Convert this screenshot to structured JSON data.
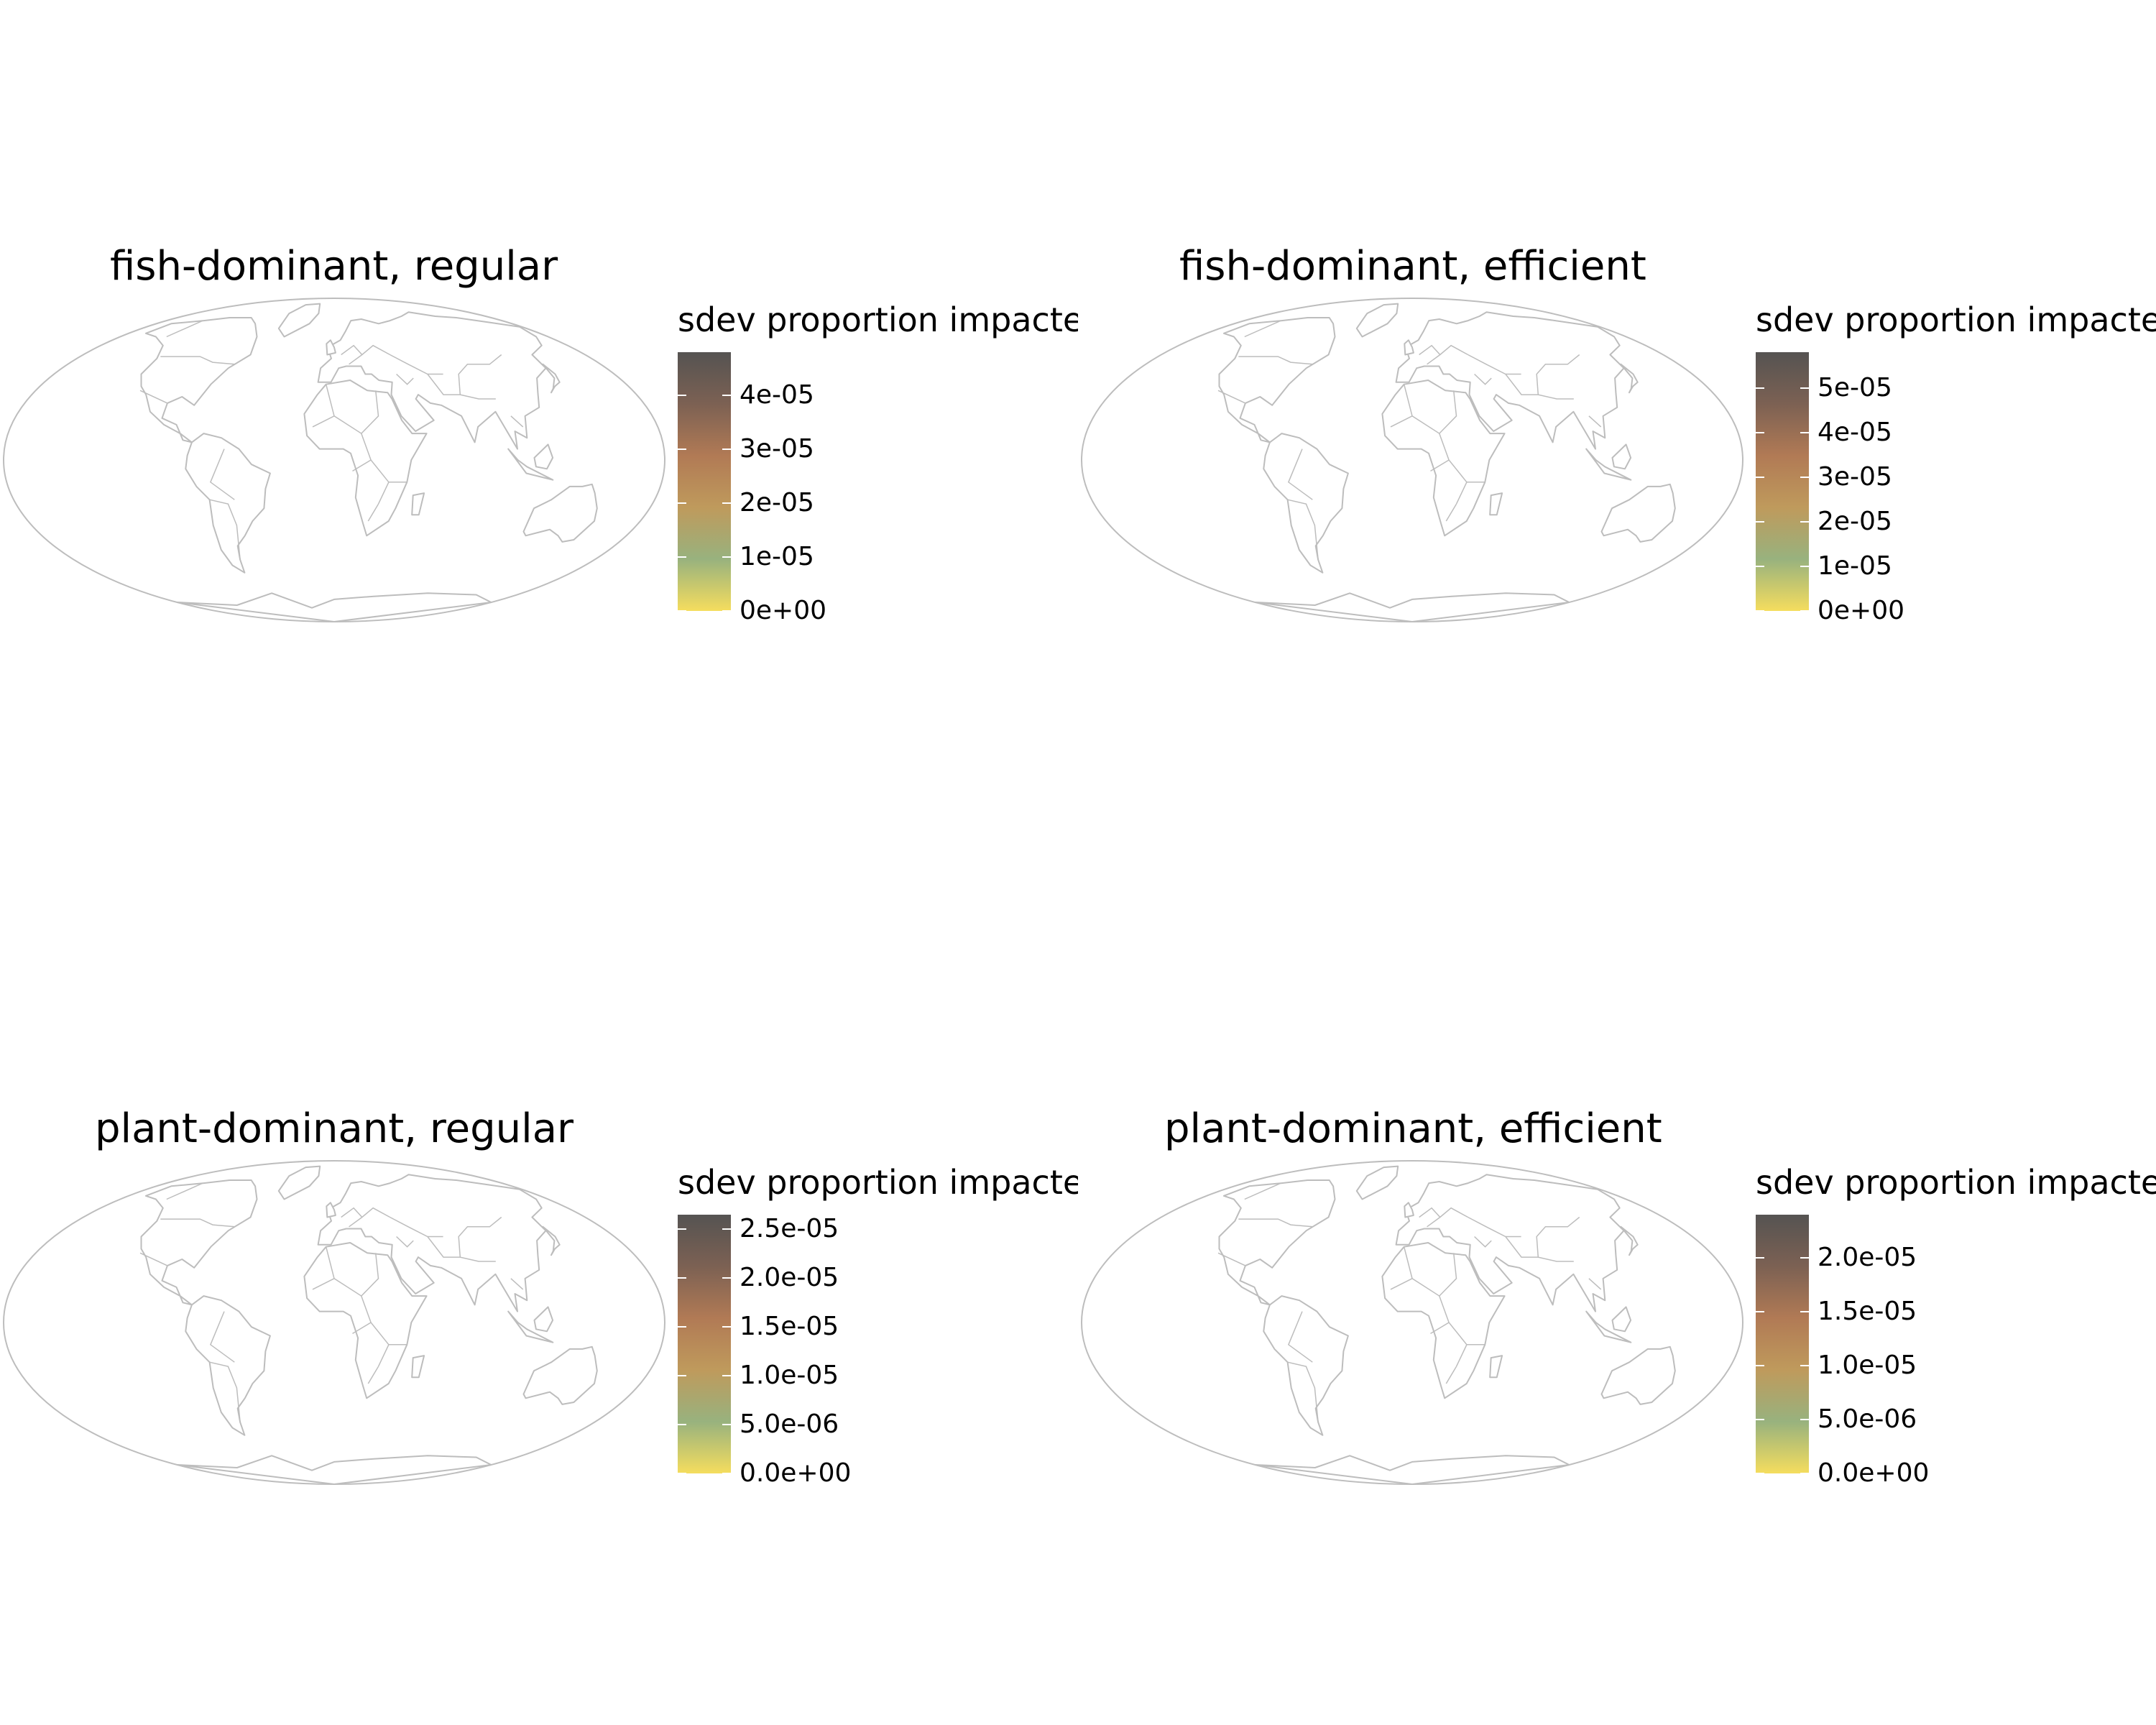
{
  "palette": [
    "#f5dd5e",
    "#98b27e",
    "#bf9a5c",
    "#b17a55",
    "#7c6153",
    "#555352"
  ],
  "map_style": {
    "ocean": "#ffffff",
    "land": "#ffffff",
    "border": "#bdbdbd",
    "projection": "mollweide"
  },
  "panels": [
    {
      "title": "fish-dominant, regular",
      "legend": {
        "title": "sdev proportion impacted",
        "min": 0,
        "max": 4.8e-05,
        "ticks": [
          {
            "value": 0,
            "label": "0e+00"
          },
          {
            "value": 1e-05,
            "label": "1e-05"
          },
          {
            "value": 2e-05,
            "label": "2e-05"
          },
          {
            "value": 3e-05,
            "label": "3e-05"
          },
          {
            "value": 4e-05,
            "label": "4e-05"
          }
        ]
      }
    },
    {
      "title": "fish-dominant, efficient",
      "legend": {
        "title": "sdev proportion impacted",
        "min": 0,
        "max": 5.8e-05,
        "ticks": [
          {
            "value": 0,
            "label": "0e+00"
          },
          {
            "value": 1e-05,
            "label": "1e-05"
          },
          {
            "value": 2e-05,
            "label": "2e-05"
          },
          {
            "value": 3e-05,
            "label": "3e-05"
          },
          {
            "value": 4e-05,
            "label": "4e-05"
          },
          {
            "value": 5e-05,
            "label": "5e-05"
          }
        ]
      }
    },
    {
      "title": "plant-dominant, regular",
      "legend": {
        "title": "sdev proportion impacted",
        "min": 0,
        "max": 2.65e-05,
        "ticks": [
          {
            "value": 0,
            "label": "0.0e+00"
          },
          {
            "value": 5e-06,
            "label": "5.0e-06"
          },
          {
            "value": 1e-05,
            "label": "1.0e-05"
          },
          {
            "value": 1.5e-05,
            "label": "1.5e-05"
          },
          {
            "value": 2e-05,
            "label": "2.0e-05"
          },
          {
            "value": 2.5e-05,
            "label": "2.5e-05"
          }
        ]
      }
    },
    {
      "title": "plant-dominant, efficient",
      "legend": {
        "title": "sdev proportion impacted",
        "min": 0,
        "max": 2.4e-05,
        "ticks": [
          {
            "value": 0,
            "label": "0.0e+00"
          },
          {
            "value": 5e-06,
            "label": "5.0e-06"
          },
          {
            "value": 1e-05,
            "label": "1.0e-05"
          },
          {
            "value": 1.5e-05,
            "label": "1.5e-05"
          },
          {
            "value": 2e-05,
            "label": "2.0e-05"
          }
        ]
      }
    }
  ]
}
